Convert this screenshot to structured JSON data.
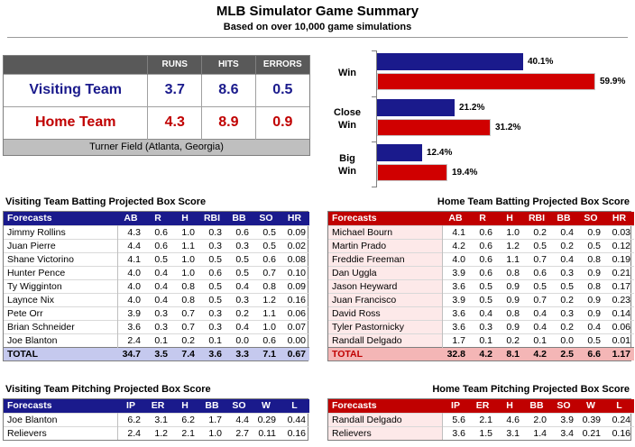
{
  "header": {
    "title": "MLB Simulator Game Summary",
    "subtitle": "Based on over 10,000 game simulations"
  },
  "summary": {
    "columns": [
      "RUNS",
      "HITS",
      "ERRORS"
    ],
    "visiting": {
      "label": "Visiting Team",
      "runs": "3.7",
      "hits": "8.6",
      "errors": "0.5"
    },
    "home": {
      "label": "Home Team",
      "runs": "4.3",
      "hits": "8.9",
      "errors": "0.9"
    },
    "venue": "Turner Field (Atlanta, Georgia)",
    "colors": {
      "visiting": "#1a1a8c",
      "home": "#c00000"
    }
  },
  "chart_data": {
    "type": "bar",
    "orientation": "horizontal",
    "categories": [
      "Win",
      "Close Win",
      "Big Win"
    ],
    "category_lines": [
      [
        "Win"
      ],
      [
        "Close",
        "Win"
      ],
      [
        "Big",
        "Win"
      ]
    ],
    "series": [
      {
        "values": [
          40.1,
          21.2,
          12.4
        ],
        "labels": [
          "40.1%",
          "21.2%",
          "12.4%"
        ],
        "color": "#1a1a8c"
      },
      {
        "values": [
          59.9,
          31.2,
          19.4
        ],
        "labels": [
          "59.9%",
          "31.2%",
          "19.4%"
        ],
        "color": "#d00000"
      }
    ],
    "xlim": [
      0,
      68
    ],
    "grid": false
  },
  "visiting_batting": {
    "title": "Visiting Team Batting Projected Box Score",
    "columns": [
      "Forecasts",
      "AB",
      "R",
      "H",
      "RBI",
      "BB",
      "SO",
      "HR"
    ],
    "rows": [
      [
        "Jimmy Rollins",
        "4.3",
        "0.6",
        "1.0",
        "0.3",
        "0.6",
        "0.5",
        "0.09"
      ],
      [
        "Juan Pierre",
        "4.4",
        "0.6",
        "1.1",
        "0.3",
        "0.3",
        "0.5",
        "0.02"
      ],
      [
        "Shane Victorino",
        "4.1",
        "0.5",
        "1.0",
        "0.5",
        "0.5",
        "0.6",
        "0.08"
      ],
      [
        "Hunter Pence",
        "4.0",
        "0.4",
        "1.0",
        "0.6",
        "0.5",
        "0.7",
        "0.10"
      ],
      [
        "Ty Wigginton",
        "4.0",
        "0.4",
        "0.8",
        "0.5",
        "0.4",
        "0.8",
        "0.09"
      ],
      [
        "Laynce Nix",
        "4.0",
        "0.4",
        "0.8",
        "0.5",
        "0.3",
        "1.2",
        "0.16"
      ],
      [
        "Pete Orr",
        "3.9",
        "0.3",
        "0.7",
        "0.3",
        "0.2",
        "1.1",
        "0.06"
      ],
      [
        "Brian Schneider",
        "3.6",
        "0.3",
        "0.7",
        "0.3",
        "0.4",
        "1.0",
        "0.07"
      ],
      [
        "Joe Blanton",
        "2.4",
        "0.1",
        "0.2",
        "0.1",
        "0.0",
        "0.6",
        "0.00"
      ]
    ],
    "total": [
      "TOTAL",
      "34.7",
      "3.5",
      "7.4",
      "3.6",
      "3.3",
      "7.1",
      "0.67"
    ]
  },
  "home_batting": {
    "title": "Home Team Batting Projected Box Score",
    "columns": [
      "Forecasts",
      "AB",
      "R",
      "H",
      "RBI",
      "BB",
      "SO",
      "HR"
    ],
    "rows": [
      [
        "Michael Bourn",
        "4.1",
        "0.6",
        "1.0",
        "0.2",
        "0.4",
        "0.9",
        "0.03"
      ],
      [
        "Martin Prado",
        "4.2",
        "0.6",
        "1.2",
        "0.5",
        "0.2",
        "0.5",
        "0.12"
      ],
      [
        "Freddie Freeman",
        "4.0",
        "0.6",
        "1.1",
        "0.7",
        "0.4",
        "0.8",
        "0.19"
      ],
      [
        "Dan Uggla",
        "3.9",
        "0.6",
        "0.8",
        "0.6",
        "0.3",
        "0.9",
        "0.21"
      ],
      [
        "Jason Heyward",
        "3.6",
        "0.5",
        "0.9",
        "0.5",
        "0.5",
        "0.8",
        "0.17"
      ],
      [
        "Juan Francisco",
        "3.9",
        "0.5",
        "0.9",
        "0.7",
        "0.2",
        "0.9",
        "0.23"
      ],
      [
        "David Ross",
        "3.6",
        "0.4",
        "0.8",
        "0.4",
        "0.3",
        "0.9",
        "0.14"
      ],
      [
        "Tyler Pastornicky",
        "3.6",
        "0.3",
        "0.9",
        "0.4",
        "0.2",
        "0.4",
        "0.06"
      ],
      [
        "Randall Delgado",
        "1.7",
        "0.1",
        "0.2",
        "0.1",
        "0.0",
        "0.5",
        "0.01"
      ]
    ],
    "total": [
      "TOTAL",
      "32.8",
      "4.2",
      "8.1",
      "4.2",
      "2.5",
      "6.6",
      "1.17"
    ]
  },
  "visiting_pitching": {
    "title": "Visiting Team Pitching Projected Box Score",
    "columns": [
      "Forecasts",
      "IP",
      "ER",
      "H",
      "BB",
      "SO",
      "W",
      "L"
    ],
    "rows": [
      [
        "Joe Blanton",
        "6.2",
        "3.1",
        "6.2",
        "1.7",
        "4.4",
        "0.29",
        "0.44"
      ],
      [
        "Relievers",
        "2.4",
        "1.2",
        "2.1",
        "1.0",
        "2.7",
        "0.11",
        "0.16"
      ]
    ]
  },
  "home_pitching": {
    "title": "Home Team Pitching Projected Box Score",
    "columns": [
      "Forecasts",
      "IP",
      "ER",
      "H",
      "BB",
      "SO",
      "W",
      "L"
    ],
    "rows": [
      [
        "Randall Delgado",
        "5.6",
        "2.1",
        "4.6",
        "2.0",
        "3.9",
        "0.39",
        "0.24"
      ],
      [
        "Relievers",
        "3.6",
        "1.5",
        "3.1",
        "1.4",
        "3.4",
        "0.21",
        "0.16"
      ]
    ]
  }
}
